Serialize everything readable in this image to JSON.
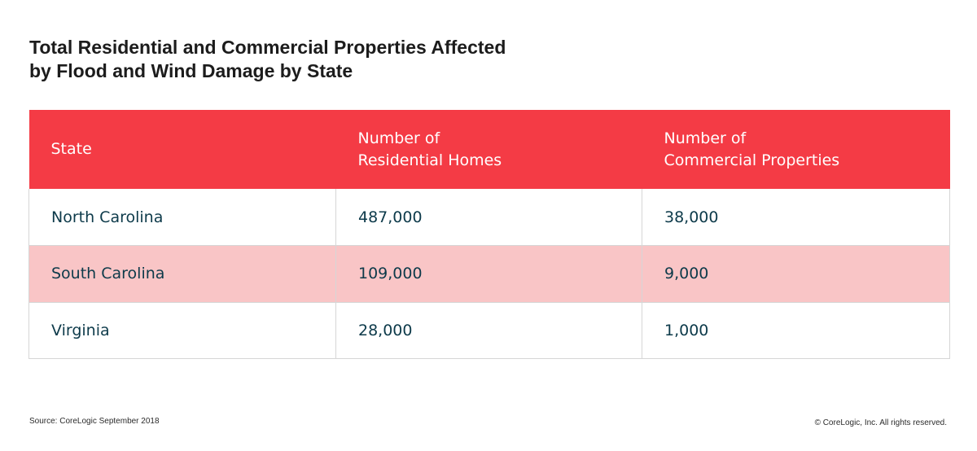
{
  "chart_data": {
    "type": "table",
    "title": "Total Residential and Commercial Properties Affected by Flood and Wind Damage by State",
    "title_lines": [
      "Total Residential and Commercial Properties Affected",
      "by Flood and Wind Damage by State"
    ],
    "columns": [
      {
        "lines": [
          "State"
        ]
      },
      {
        "lines": [
          "Number of",
          "Residential Homes"
        ]
      },
      {
        "lines": [
          "Number of",
          "Commercial Properties"
        ]
      }
    ],
    "rows": [
      {
        "state": "North Carolina",
        "residential": "487,000",
        "commercial": "38,000"
      },
      {
        "state": "South Carolina",
        "residential": "109,000",
        "commercial": "9,000"
      },
      {
        "state": "Virginia",
        "residential": "28,000",
        "commercial": "1,000"
      }
    ],
    "values": {
      "residential": [
        487000,
        109000,
        28000
      ],
      "commercial": [
        38000,
        9000,
        1000
      ]
    }
  },
  "footer": {
    "source": "Source: CoreLogic September 2018",
    "copyright": "© CoreLogic, Inc. All rights reserved."
  },
  "colors": {
    "header_bg": "#f43b45",
    "header_text": "#ffffff",
    "row_alt_bg": "#f9c5c6",
    "cell_text": "#0d3a4a",
    "grid": "#d6d6d6"
  }
}
